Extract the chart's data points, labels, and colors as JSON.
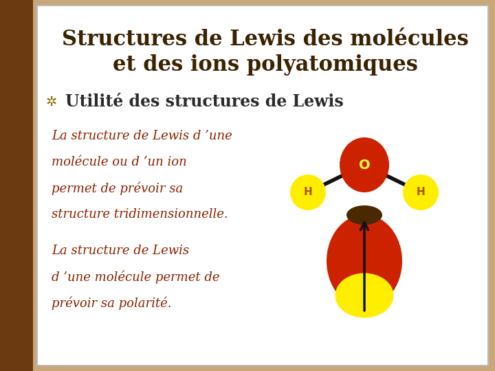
{
  "title_line1": "Structures de Lewis des molécules",
  "title_line2": "et des ions polyatomiques",
  "bullet_text": "Utilité des structures de Lewis",
  "text1_line1": "La structure de Lewis d ’une",
  "text1_line2": "molécule ou d ’un ion",
  "text1_line3": "permet de prévoir sa",
  "text1_line4": "structure tridimensionnelle.",
  "text2_line1": "La structure de Lewis",
  "text2_line2": "d ’une molécule permet de",
  "text2_line3": "prévoir sa polarité.",
  "bg_outer": "#C8A878",
  "bg_left_strip": "#6B3A10",
  "bg_main": "#FFFFFF",
  "title_color": "#3B2200",
  "text_color": "#8B2000",
  "bullet_color": "#2B2B2B",
  "bullet_symbol_color": "#8B7000",
  "o_color": "#CC2200",
  "h_color": "#FFEE00",
  "bond_color": "#111111",
  "arrow_color": "#111111",
  "cap_color": "#4A2800",
  "h_text_color": "#AA5500",
  "o_text_color": "#FFFF44"
}
